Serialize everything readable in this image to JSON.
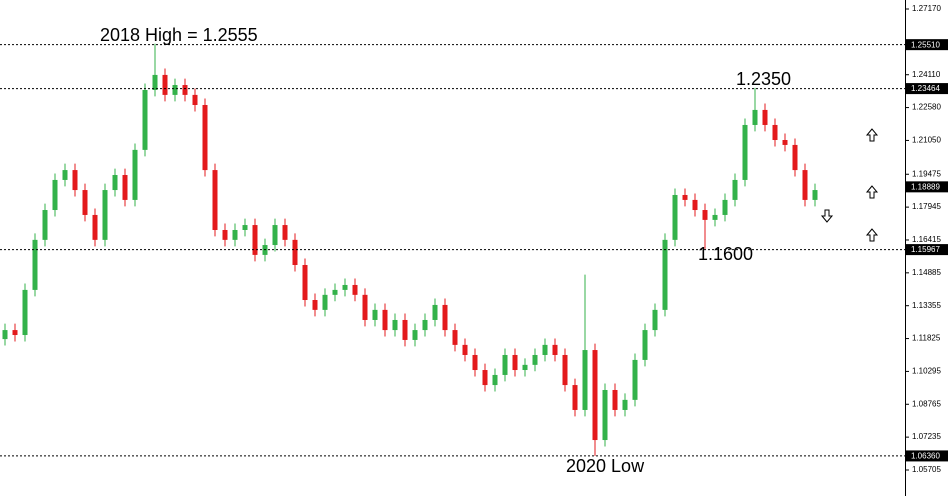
{
  "chart_data": {
    "type": "candlestick",
    "annotations": [
      "2018 High = 1.2555",
      "1.2350",
      "1.1600",
      "2020 Low"
    ],
    "up_color": "#33b24a",
    "down_color": "#e31a1c",
    "ylim": [
      1.04494,
      1.27589
    ],
    "yticks": [
      {
        "value": 1.2717,
        "label": "1.27170"
      },
      {
        "value": 1.2411,
        "label": "1.24110"
      },
      {
        "value": 1.2258,
        "label": "1.22580"
      },
      {
        "value": 1.2105,
        "label": "1.21050"
      },
      {
        "value": 1.19475,
        "label": "1.19475"
      },
      {
        "value": 1.17945,
        "label": "1.17945"
      },
      {
        "value": 1.16415,
        "label": "1.16415"
      },
      {
        "value": 1.14885,
        "label": "1.14885"
      },
      {
        "value": 1.13355,
        "label": "1.13355"
      },
      {
        "value": 1.11825,
        "label": "1.11825"
      },
      {
        "value": 1.10295,
        "label": "1.10295"
      },
      {
        "value": 1.08765,
        "label": "1.08765"
      },
      {
        "value": 1.07235,
        "label": "1.07235"
      },
      {
        "value": 1.05705,
        "label": "1.05705"
      }
    ],
    "levels": [
      {
        "value": 1.2551,
        "label": "1.25510",
        "line": true
      },
      {
        "value": 1.23464,
        "label": "1.23464",
        "line": true
      },
      {
        "value": 1.18889,
        "label": "1.18889",
        "line": false
      },
      {
        "value": 1.15967,
        "label": "1.15967",
        "line": true
      },
      {
        "value": 1.0636,
        "label": "1.06360",
        "line": true
      }
    ],
    "open": [
      1.118,
      1.1222,
      1.1199,
      1.1409,
      1.1642,
      1.1781,
      1.1921,
      1.1967,
      1.1874,
      1.1758,
      1.1642,
      1.1874,
      1.1944,
      1.1828,
      1.2061,
      1.234,
      1.241,
      1.2317,
      1.2363,
      1.2317,
      1.227,
      1.1967,
      1.1688,
      1.1642,
      1.1688,
      1.1711,
      1.1572,
      1.1618,
      1.1711,
      1.1642,
      1.1525,
      1.1362,
      1.1316,
      1.1386,
      1.1409,
      1.1432,
      1.1386,
      1.1269,
      1.1316,
      1.1222,
      1.1269,
      1.1176,
      1.1222,
      1.1269,
      1.1339,
      1.1222,
      1.1153,
      1.1106,
      1.1036,
      1.0966,
      1.1013,
      1.1106,
      1.1036,
      1.106,
      1.1106,
      1.1153,
      1.1106,
      1.0966,
      1.085,
      1.1129,
      1.071,
      1.0943,
      1.085,
      1.0897,
      1.1083,
      1.1222,
      1.1316,
      1.1642,
      1.1851,
      1.1828,
      1.1781,
      1.1735,
      1.1758,
      1.1828,
      1.1921,
      1.2177,
      1.2247,
      1.2177,
      1.2107,
      1.2084,
      1.1967,
      1.1828
    ],
    "high": [
      1.1252,
      1.1252,
      1.1439,
      1.1672,
      1.1811,
      1.1951,
      1.1997,
      1.1997,
      1.1904,
      1.1788,
      1.1904,
      1.1974,
      1.1974,
      1.2091,
      1.237,
      1.2555,
      1.244,
      1.2393,
      1.2393,
      1.2347,
      1.23,
      1.1997,
      1.1718,
      1.1718,
      1.1741,
      1.1741,
      1.1648,
      1.1741,
      1.1741,
      1.1672,
      1.1555,
      1.1392,
      1.1416,
      1.1439,
      1.1462,
      1.1462,
      1.1416,
      1.1346,
      1.1346,
      1.1299,
      1.1299,
      1.1252,
      1.1299,
      1.1369,
      1.1369,
      1.1252,
      1.1183,
      1.1136,
      1.1066,
      1.1043,
      1.1136,
      1.1136,
      1.109,
      1.1136,
      1.1183,
      1.1183,
      1.1136,
      1.0996,
      1.148,
      1.1159,
      1.0973,
      1.0973,
      1.0927,
      1.1113,
      1.1252,
      1.1346,
      1.1672,
      1.1881,
      1.1881,
      1.1858,
      1.1811,
      1.1788,
      1.1858,
      1.1951,
      1.2207,
      1.235,
      1.2277,
      1.2207,
      1.2137,
      1.2114,
      1.1997,
      1.1904
    ],
    "low": [
      1.115,
      1.1169,
      1.1169,
      1.1379,
      1.1612,
      1.1751,
      1.1891,
      1.1844,
      1.1728,
      1.1612,
      1.1612,
      1.1844,
      1.1798,
      1.1798,
      1.2031,
      1.231,
      1.2287,
      1.2287,
      1.2287,
      1.224,
      1.1937,
      1.1658,
      1.1612,
      1.1612,
      1.1658,
      1.1542,
      1.1542,
      1.1588,
      1.1612,
      1.1495,
      1.1332,
      1.1286,
      1.1286,
      1.1356,
      1.1379,
      1.1356,
      1.1239,
      1.1239,
      1.1192,
      1.1192,
      1.1146,
      1.1146,
      1.1192,
      1.1239,
      1.1192,
      1.1123,
      1.1076,
      1.1006,
      1.0936,
      1.0936,
      1.0983,
      1.1006,
      1.1006,
      1.103,
      1.1076,
      1.1076,
      1.0936,
      1.082,
      1.082,
      1.0636,
      1.068,
      1.082,
      1.082,
      1.0867,
      1.1053,
      1.1192,
      1.1286,
      1.1612,
      1.1798,
      1.1751,
      1.16,
      1.1705,
      1.1728,
      1.1798,
      1.1891,
      1.2147,
      1.2147,
      1.2077,
      1.2054,
      1.1937,
      1.1798,
      1.1798
    ],
    "close": [
      1.1222,
      1.1199,
      1.1409,
      1.1642,
      1.1781,
      1.1921,
      1.1967,
      1.1874,
      1.1758,
      1.1642,
      1.1874,
      1.1944,
      1.1828,
      1.2061,
      1.234,
      1.241,
      1.2317,
      1.2363,
      1.2317,
      1.227,
      1.1967,
      1.1688,
      1.1642,
      1.1688,
      1.1711,
      1.1572,
      1.1618,
      1.1711,
      1.1642,
      1.1525,
      1.1362,
      1.1316,
      1.1386,
      1.1409,
      1.1432,
      1.1386,
      1.1269,
      1.1316,
      1.1222,
      1.1269,
      1.1176,
      1.1222,
      1.1269,
      1.1339,
      1.1222,
      1.1153,
      1.1106,
      1.1036,
      1.0966,
      1.1013,
      1.1106,
      1.1036,
      1.106,
      1.1106,
      1.1153,
      1.1106,
      1.0966,
      1.085,
      1.1129,
      1.071,
      1.0943,
      1.085,
      1.0897,
      1.1083,
      1.1222,
      1.1316,
      1.1642,
      1.1851,
      1.1828,
      1.1781,
      1.1735,
      1.1758,
      1.1828,
      1.1921,
      1.2177,
      1.2247,
      1.2177,
      1.2107,
      1.2084,
      1.1967,
      1.1828,
      1.1874
    ]
  }
}
